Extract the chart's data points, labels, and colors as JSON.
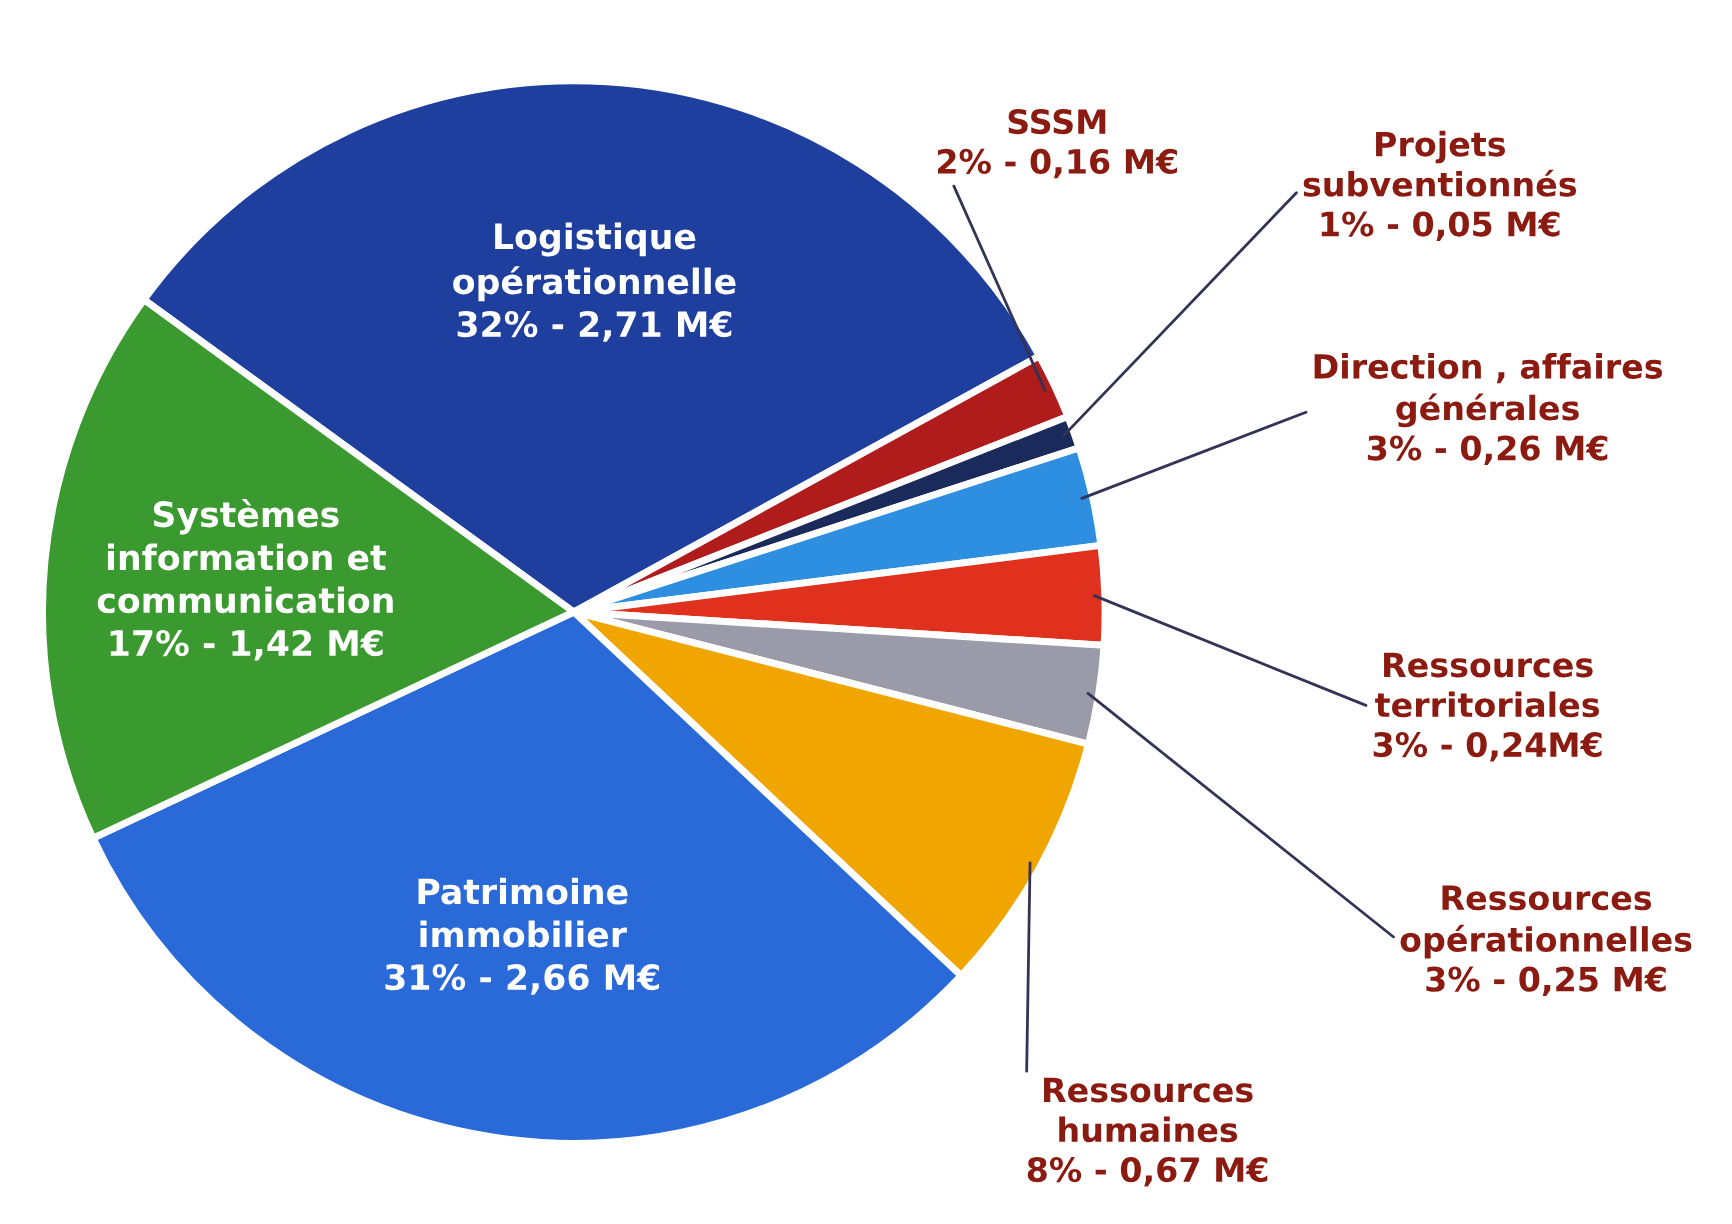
{
  "chart_data": {
    "type": "pie",
    "categories": [
      "Logistique\nopérationnelle",
      "SSSM",
      "Projets\nsubventionnés",
      "Direction , affaires\ngénérales",
      "Ressources\nterritoriales",
      "Ressources\nopérationnelles",
      "Ressources\nhumaines",
      "Patrimoine\nimmobilier",
      "Systèmes\ninformation et\ncommunication"
    ],
    "values": [
      32,
      2,
      1,
      3,
      3,
      3,
      8,
      31,
      17
    ],
    "value_labels": [
      "32% - 2,71 M€",
      "2% - 0,16 M€",
      "1% - 0,05 M€",
      "3% - 0,26 M€",
      "3% - 0,24M€",
      "3% - 0,25 M€",
      "8% - 0,67 M€",
      "31% - 2,66 M€",
      "17% - 1,42 M€"
    ],
    "colors": [
      "#1f3f9e",
      "#b01c1c",
      "#1a2a5a",
      "#2e8ee0",
      "#e0301e",
      "#9a9aa8",
      "#f0a500",
      "#2a6ad8",
      "#3a9a30"
    ]
  }
}
